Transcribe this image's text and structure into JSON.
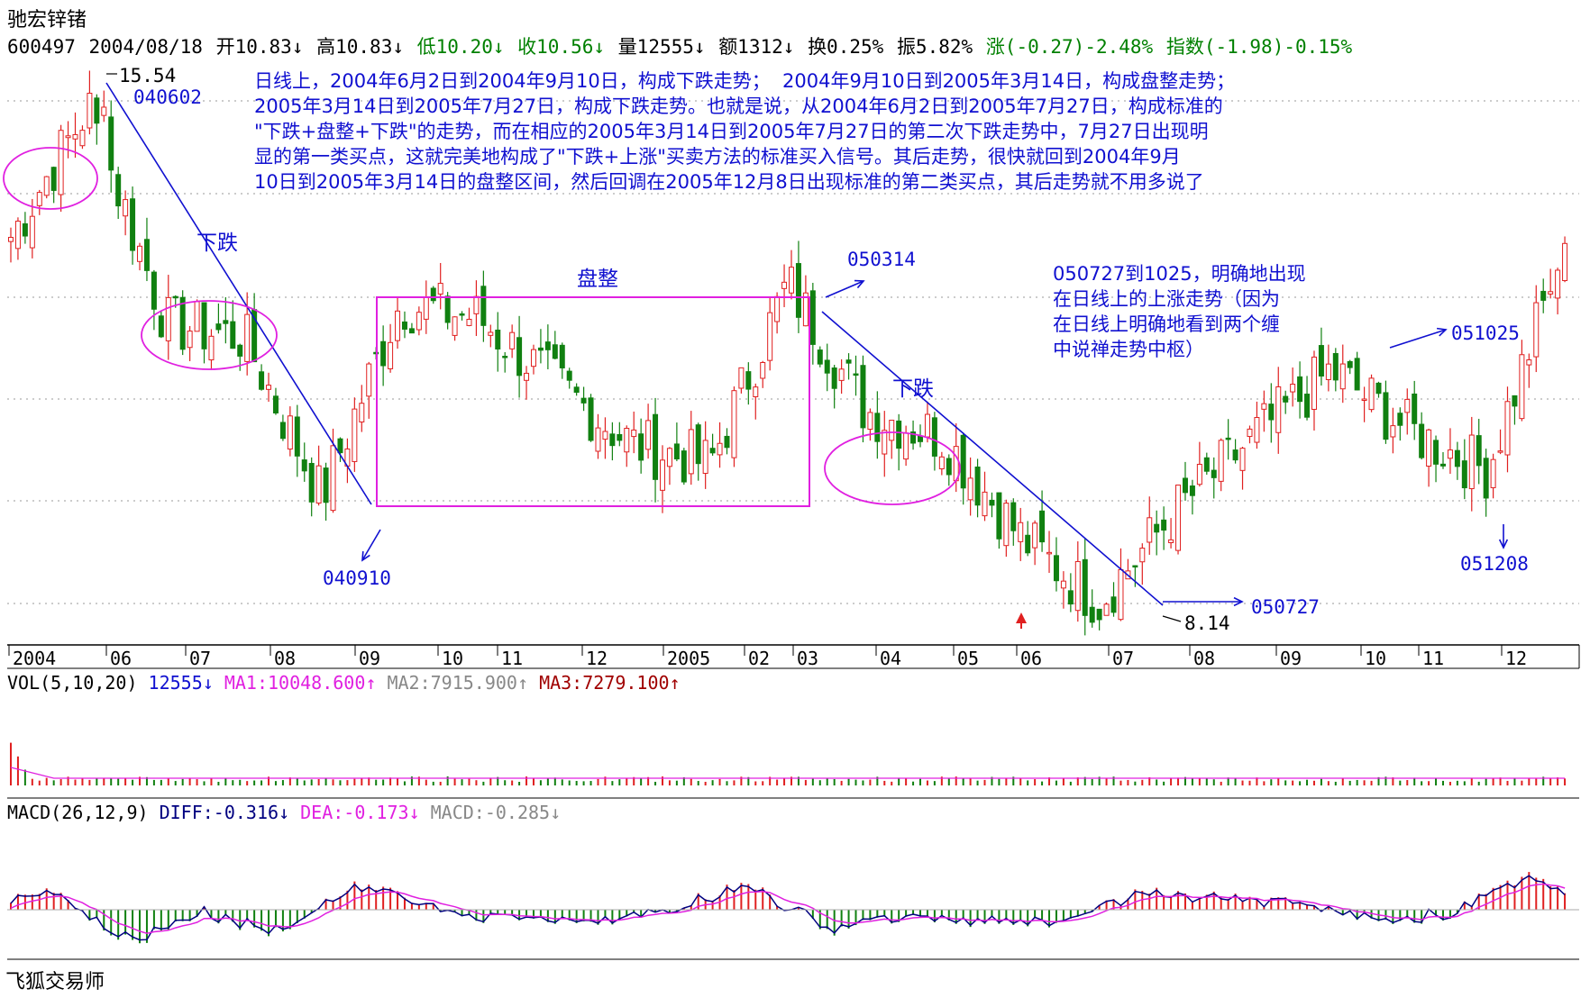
{
  "header": {
    "title": "驰宏锌锗",
    "code": "600497",
    "date": "2004/08/18",
    "open": "开10.83↓",
    "high": "高10.83↓",
    "low": "低10.20↓",
    "close": "收10.56↓",
    "volume": "量12555↓",
    "amount": "额1312↓",
    "turnover": "换0.25%",
    "amplitude": "振5.82%",
    "change": "涨(-0.27)-2.48%",
    "index": "指数(-1.98)-0.15%",
    "colors": {
      "down": "#008000",
      "neutral": "#000000"
    }
  },
  "annotations": {
    "note_main": "日线上，2004年6月2日到2004年9月10日，构成下跌走势；  2004年9月10日到2005年3月14日，构成盘整走势；\n2005年3月14日到2005年7月27日，构成下跌走势。也就是说，从2004年6月2日到2005年7月27日，构成标准的\n\"下跌+盘整+下跌\"的走势，而在相应的2005年3月14日到2005年7月27日的第二次下跌走势中，7月27日出现明\n显的第一类买点，这就完美地构成了\"下跌+上涨\"买卖方法的标准买入信号。其后走势，很快就回到2004年9月\n10日到2005年3月14日的盘整区间，然后回调在2005年12月8日出现标准的第二类买点，其后走势就不用多说了",
    "note_up": "050727到1025，明确地出现\n在日线上的上涨走势（因为\n在日线上明确地看到两个缠\n中说禅走势中枢）",
    "high_price": "15.54",
    "low_price": "8.14",
    "d040602": "040602",
    "d040910": "040910",
    "d050314": "050314",
    "d050727": "050727",
    "d051025": "051025",
    "d051208": "051208",
    "label_fall1": "下跌",
    "label_fall2": "下跌",
    "label_consol": "盘整"
  },
  "time_axis": [
    "2004",
    "06",
    "07",
    "08",
    "09",
    "10",
    "11",
    "12",
    "2005",
    "02",
    "03",
    "04",
    "05",
    "06",
    "07",
    "08",
    "09",
    "10",
    "11",
    "12"
  ],
  "volume_panel": {
    "title": "VOL(5,10,20)",
    "value": "12555↓",
    "ma1": "MA1:10048.600↑",
    "ma2": "MA2:7915.900↑",
    "ma3": "MA3:7279.100↑"
  },
  "macd_panel": {
    "title": "MACD(26,12,9)",
    "diff": "DIFF:-0.316↓",
    "dea": "DEA:-0.173↓",
    "macd": "MACD:-0.285↓"
  },
  "footer": "飞狐交易师",
  "chart_data": {
    "type": "candlestick",
    "title": "驰宏锌锗",
    "xlabel": "",
    "ylabel": "",
    "x": [
      "2004-05",
      "2004-06-02",
      "2004-07",
      "2004-08",
      "2004-09-10",
      "2004-10",
      "2004-11",
      "2004-12",
      "2005-01",
      "2005-02",
      "2005-03-14",
      "2005-04",
      "2005-05",
      "2005-06",
      "2005-07-27",
      "2005-08",
      "2005-09",
      "2005-10-25",
      "2005-11",
      "2005-12-08",
      "2005-12-30"
    ],
    "series": [
      {
        "values": [
          13.6,
          15.54,
          12.3,
          12.1,
          9.7,
          12.6,
          12.4,
          11.4,
          10.5,
          10.2,
          12.9,
          11.0,
          10.6,
          9.1,
          8.14,
          9.5,
          10.6,
          11.6,
          10.7,
          10.1,
          13.5
        ]
      }
    ],
    "key_points": [
      {
        "date": "040602",
        "price": 15.54,
        "note": "high"
      },
      {
        "date": "040910",
        "price": null
      },
      {
        "date": "050314",
        "price": null
      },
      {
        "date": "050727",
        "price": 8.14,
        "note": "low"
      },
      {
        "date": "051025",
        "price": null
      },
      {
        "date": "051208",
        "price": null
      }
    ],
    "consolidation_zone": {
      "from": "040910",
      "to": "050314"
    },
    "grid": true
  }
}
